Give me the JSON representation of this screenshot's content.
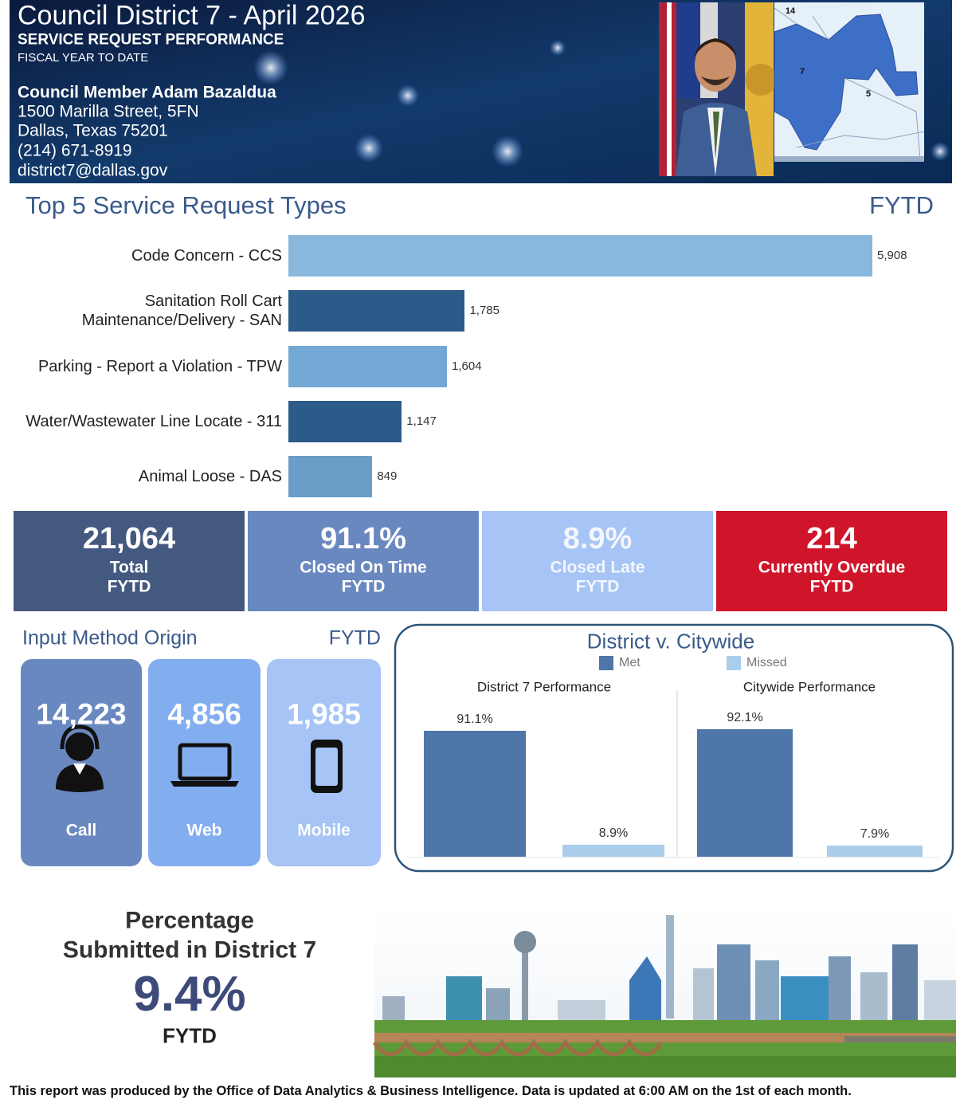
{
  "header": {
    "title": "Council District 7 - April 2026",
    "subtitle": "SERVICE REQUEST PERFORMANCE",
    "period": "FISCAL YEAR TO DATE",
    "member": "Council Member Adam Bazaldua",
    "address_line1": "1500 Marilla Street, 5FN",
    "address_line2": "Dallas, Texas 75201",
    "phone": "(214) 671-8919",
    "email": "district7@dallas.gov"
  },
  "map": {
    "labels": [
      "14",
      "7",
      "5"
    ]
  },
  "chart_data": [
    {
      "type": "hbar",
      "title": "Top 5 Service Request Types",
      "period": "FYTD",
      "categories": [
        "Code Concern - CCS",
        "Sanitation Roll Cart Maintenance/Delivery - SAN",
        "Parking - Report a Violation - TPW",
        "Water/Wastewater Line Locate - 311",
        "Animal Loose - DAS"
      ],
      "values": [
        5908,
        1785,
        1604,
        1147,
        849
      ],
      "value_labels": [
        "5,908",
        "1,785",
        "1,604",
        "1,147",
        "849"
      ],
      "colors": [
        "#8ab8dc",
        "#2c5a89",
        "#73a8d5",
        "#2c5a89",
        "#6a9dc8"
      ]
    },
    {
      "type": "bar",
      "title": "District v. Citywide",
      "panels": [
        "District 7 Performance",
        "Citywide Performance"
      ],
      "series": [
        {
          "name": "Met",
          "color": "#4e76a8",
          "values": [
            91.1,
            92.1
          ],
          "value_labels": [
            "91.1%",
            "92.1%"
          ]
        },
        {
          "name": "Missed",
          "color": "#a9cdea",
          "values": [
            8.9,
            7.9
          ],
          "value_labels": [
            "8.9%",
            "7.9%"
          ]
        }
      ]
    }
  ],
  "totals": [
    {
      "value": "21,064",
      "label": "Total",
      "period": "FYTD",
      "color": "#44597f",
      "text_color": "#ffffff"
    },
    {
      "value": "91.1%",
      "label": "Closed On Time",
      "period": "FYTD",
      "color": "#6a88c0",
      "text_color": "#ffffff"
    },
    {
      "value": "8.9%",
      "label": "Closed Late",
      "period": "FYTD",
      "color": "#a6c4f5",
      "text_color": "#f4f7fd"
    },
    {
      "value": "214",
      "label": "Currently Overdue",
      "period": "FYTD",
      "color": "#d0152b",
      "text_color": "#ffffff"
    }
  ],
  "input_method": {
    "title": "Input Method Origin",
    "period": "FYTD",
    "items": [
      {
        "value": "14,223",
        "label": "Call",
        "color": "#6a88c0"
      },
      {
        "value": "4,856",
        "label": "Web",
        "color": "#82aef0"
      },
      {
        "value": "1,985",
        "label": "Mobile",
        "color": "#a6c4f5"
      }
    ]
  },
  "district_share": {
    "title_line1": "Percentage",
    "title_line2": "Submitted in District 7",
    "value": "9.4%",
    "period": "FYTD"
  },
  "footer": "This report was produced by the Office of Data Analytics & Business Intelligence. Data is updated at 6:00 AM on the 1st of each month."
}
